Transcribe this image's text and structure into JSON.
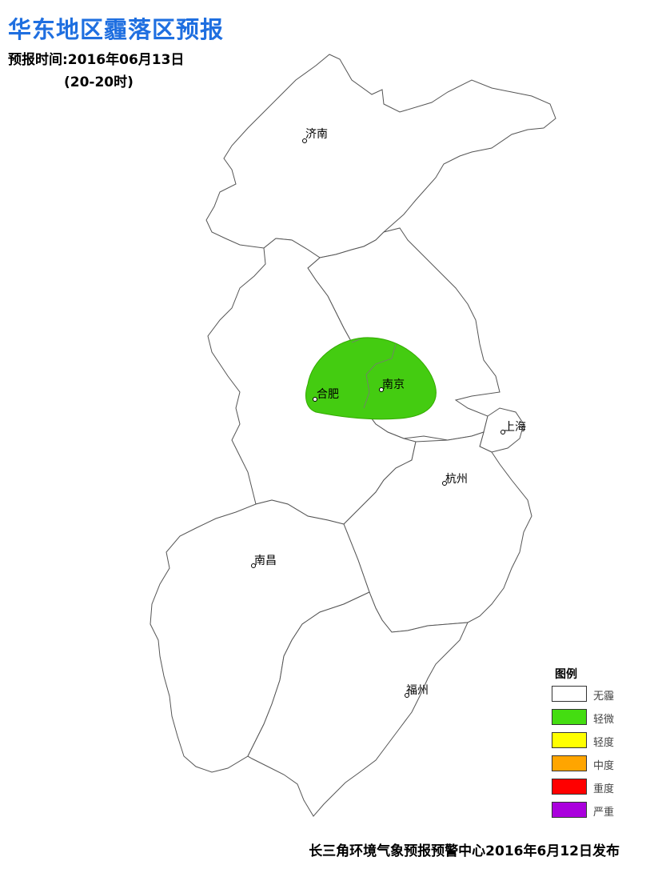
{
  "header": {
    "title": "华东地区霾落区预报",
    "time_line": "预报时间:2016年06月13日",
    "period": "(20-20时)"
  },
  "cities": [
    "济南",
    "合肥",
    "南京",
    "上海",
    "杭州",
    "南昌",
    "福州"
  ],
  "haze_area": {
    "level": "轻微",
    "color": "#44cc11"
  },
  "legend": {
    "title": "图例",
    "items": [
      {
        "label": "无霾",
        "color": "#ffffff"
      },
      {
        "label": "轻微",
        "color": "#44dd11"
      },
      {
        "label": "轻度",
        "color": "#ffff00"
      },
      {
        "label": "中度",
        "color": "#ffa500"
      },
      {
        "label": "重度",
        "color": "#ff0000"
      },
      {
        "label": "严重",
        "color": "#aa00dd"
      }
    ]
  },
  "footer": "长三角环境气象预报预警中心2016年6月12日发布"
}
